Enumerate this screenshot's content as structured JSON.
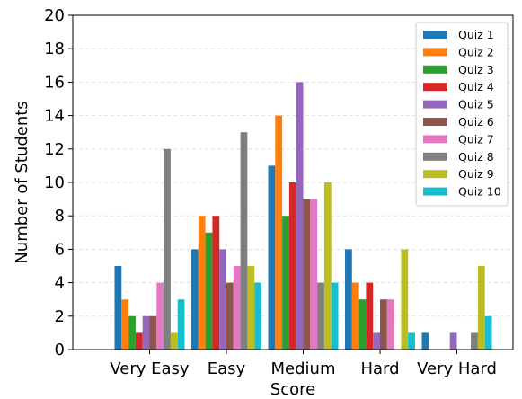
{
  "chart_data": {
    "type": "bar",
    "xlabel": "Score",
    "ylabel": "Number of Students",
    "categories": [
      "Very Easy",
      "Easy",
      "Medium",
      "Hard",
      "Very Hard"
    ],
    "ylim": [
      0,
      20
    ],
    "yticks": [
      0,
      2,
      4,
      6,
      8,
      10,
      12,
      14,
      16,
      18,
      20
    ],
    "grid": "horizontal dashed",
    "legend_position": "top-right",
    "series": [
      {
        "name": "Quiz 1",
        "color": "#1f77b4",
        "values": [
          5,
          6,
          11,
          6,
          1
        ]
      },
      {
        "name": "Quiz 2",
        "color": "#ff7f0e",
        "values": [
          3,
          8,
          14,
          4,
          0
        ]
      },
      {
        "name": "Quiz 3",
        "color": "#2ca02c",
        "values": [
          2,
          7,
          8,
          3,
          0
        ]
      },
      {
        "name": "Quiz 4",
        "color": "#d62728",
        "values": [
          1,
          8,
          10,
          4,
          0
        ]
      },
      {
        "name": "Quiz 5",
        "color": "#9467bd",
        "values": [
          2,
          6,
          16,
          1,
          1
        ]
      },
      {
        "name": "Quiz 6",
        "color": "#8c564b",
        "values": [
          2,
          4,
          9,
          3,
          0
        ]
      },
      {
        "name": "Quiz 7",
        "color": "#e377c2",
        "values": [
          4,
          5,
          9,
          3,
          0
        ]
      },
      {
        "name": "Quiz 8",
        "color": "#7f7f7f",
        "values": [
          12,
          13,
          4,
          0,
          1
        ]
      },
      {
        "name": "Quiz 9",
        "color": "#bcbd22",
        "values": [
          1,
          5,
          10,
          6,
          5
        ]
      },
      {
        "name": "Quiz 10",
        "color": "#17becf",
        "values": [
          3,
          4,
          4,
          1,
          2
        ]
      }
    ]
  }
}
